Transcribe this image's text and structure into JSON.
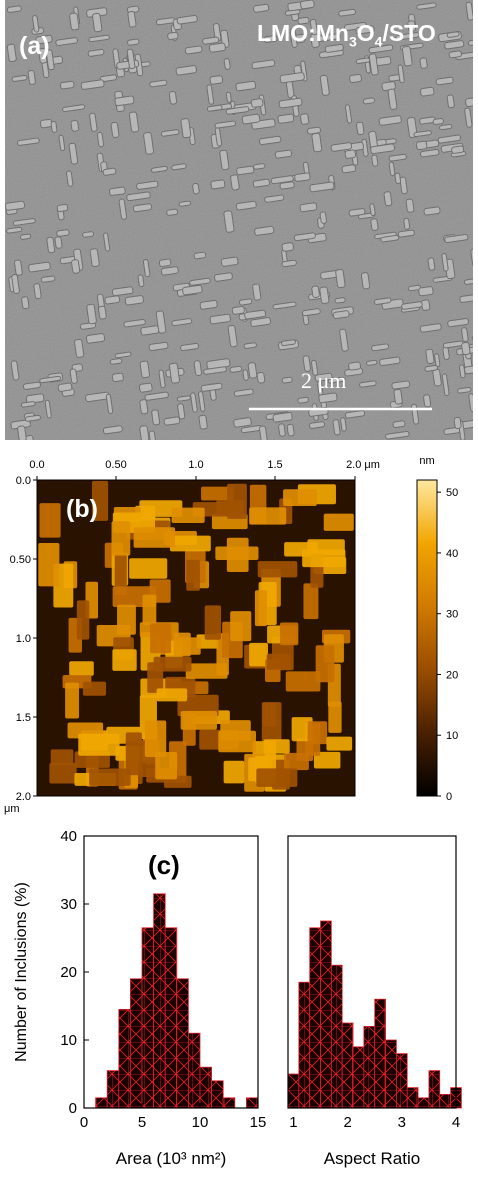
{
  "panel_a": {
    "label": "(a)",
    "sample": "LMO:Mn",
    "sample_sub1": "3",
    "sample_mid": "O",
    "sample_sub2": "4",
    "sample_end": "/STO",
    "scalebar": "2 μm"
  },
  "panel_b": {
    "label": "(b)",
    "x_ticks": [
      "0.0",
      "0.50",
      "1.0",
      "1.5",
      "2.0 μm"
    ],
    "y_ticks": [
      "0.0",
      "0.50",
      "1.0",
      "1.5",
      "2.0"
    ],
    "corner_unit": "μm",
    "colorbar_unit": "nm",
    "colorbar_ticks": [
      "50",
      "40",
      "30",
      "20",
      "10",
      "0"
    ],
    "colorbar_colors": [
      "#000000",
      "#4a2000",
      "#9a4d00",
      "#d07a00",
      "#f2a500",
      "#ffe8a0"
    ]
  },
  "panel_c": {
    "label": "(c)",
    "bar_fill": "#1a0000",
    "bar_grid": "#e0202a"
  },
  "chart_data": [
    {
      "type": "bar",
      "xlabel": "Area (10³ nm²)",
      "ylabel": "Number of Inclusions (%)",
      "xlim": [
        0,
        15
      ],
      "ylim": [
        0,
        40
      ],
      "x_ticks": [
        "0",
        "5",
        "10",
        "15"
      ],
      "y_ticks": [
        "0",
        "10",
        "20",
        "30",
        "40"
      ],
      "bin_width": 1,
      "bin_start": [
        1,
        2,
        3,
        4,
        5,
        6,
        7,
        8,
        9,
        10,
        11,
        12,
        13,
        14
      ],
      "values": [
        1.5,
        5.5,
        14.5,
        19,
        26.5,
        31.5,
        26.5,
        19,
        11,
        6,
        4,
        1.5,
        0,
        1.5
      ]
    },
    {
      "type": "bar",
      "xlabel": "Aspect Ratio",
      "ylabel": "",
      "xlim": [
        0.9,
        4.0
      ],
      "ylim": [
        0,
        40
      ],
      "x_ticks": [
        "1",
        "2",
        "3",
        "4"
      ],
      "bin_width": 0.2,
      "bin_start": [
        0.9,
        1.1,
        1.3,
        1.5,
        1.7,
        1.9,
        2.1,
        2.3,
        2.5,
        2.7,
        2.9,
        3.1,
        3.3,
        3.5,
        3.7,
        3.9
      ],
      "values": [
        5,
        18.5,
        26.5,
        27.5,
        21,
        12.5,
        9,
        12,
        16,
        10,
        8,
        3,
        1.5,
        5.5,
        2,
        3
      ]
    }
  ]
}
